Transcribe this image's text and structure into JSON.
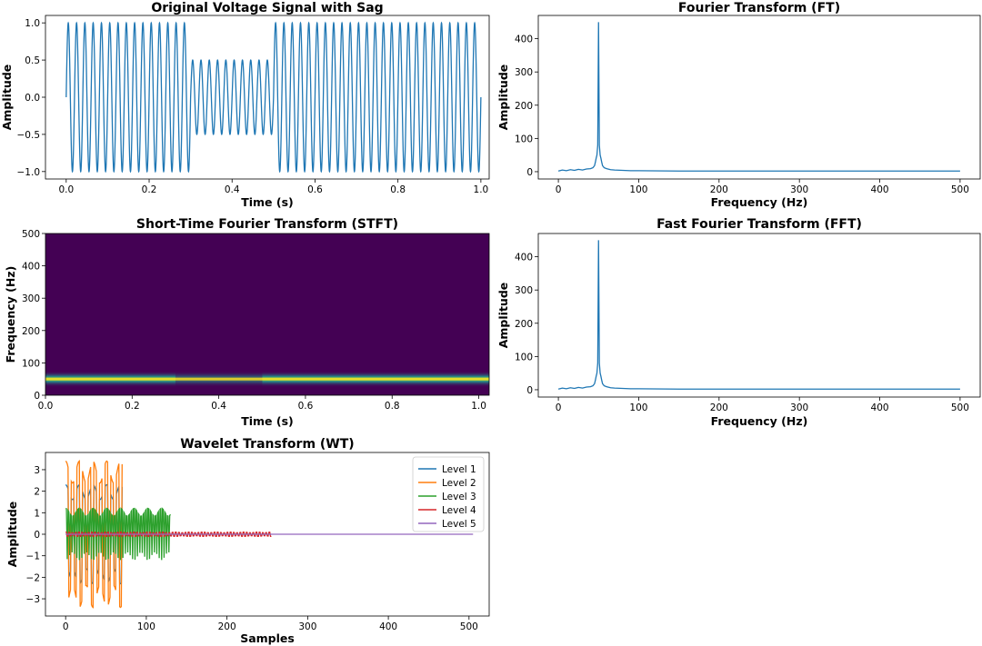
{
  "chart_data": [
    {
      "id": "voltage",
      "type": "line",
      "title": "Original Voltage Signal with Sag",
      "xlabel": "Time (s)",
      "ylabel": "Amplitude",
      "xlim": [
        -0.05,
        1.02
      ],
      "ylim": [
        -1.1,
        1.1
      ],
      "xticks": [
        0.0,
        0.2,
        0.4,
        0.6,
        0.8,
        1.0
      ],
      "xtick_labels": [
        "0.0",
        "0.2",
        "0.4",
        "0.6",
        "0.8",
        "1.0"
      ],
      "yticks": [
        -1.0,
        -0.5,
        0.0,
        0.5,
        1.0
      ],
      "ytick_labels": [
        "−1.0",
        "−0.5",
        "0.0",
        "0.5",
        "1.0"
      ],
      "signal": {
        "frequency_hz": 50,
        "duration_s": 1.0,
        "sag_start_s": 0.3,
        "sag_end_s": 0.5,
        "normal_amplitude": 1.0,
        "sag_amplitude": 0.5
      },
      "color": "#1f77b4"
    },
    {
      "id": "ft",
      "type": "line",
      "title": "Fourier Transform (FT)",
      "xlabel": "Frequency (Hz)",
      "ylabel": "Amplitude",
      "xlim": [
        -25,
        525
      ],
      "ylim": [
        -22,
        470
      ],
      "xticks": [
        0,
        100,
        200,
        300,
        400,
        500
      ],
      "xtick_labels": [
        "0",
        "100",
        "200",
        "300",
        "400",
        "500"
      ],
      "yticks": [
        0,
        100,
        200,
        300,
        400
      ],
      "ytick_labels": [
        "0",
        "100",
        "200",
        "300",
        "400"
      ],
      "x": [
        0,
        5,
        10,
        15,
        20,
        25,
        30,
        35,
        40,
        43,
        45,
        46,
        47,
        48,
        49,
        50,
        51,
        52,
        53,
        54,
        55,
        57,
        60,
        65,
        70,
        80,
        90,
        100,
        150,
        200,
        300,
        400,
        500
      ],
      "y": [
        2,
        5,
        3,
        6,
        4,
        7,
        5,
        8,
        9,
        12,
        18,
        28,
        40,
        50,
        80,
        450,
        80,
        50,
        40,
        28,
        18,
        12,
        9,
        6,
        5,
        4,
        3,
        3,
        2,
        2,
        2,
        2,
        2
      ],
      "color": "#1f77b4"
    },
    {
      "id": "stft",
      "type": "heatmap",
      "title": "Short-Time Fourier Transform (STFT)",
      "xlabel": "Time (s)",
      "ylabel": "Frequency (Hz)",
      "xlim": [
        0.0,
        1.024
      ],
      "ylim": [
        0,
        500
      ],
      "xticks": [
        0.0,
        0.2,
        0.4,
        0.6,
        0.8,
        1.0
      ],
      "xtick_labels": [
        "0.0",
        "0.2",
        "0.4",
        "0.6",
        "0.8",
        "1.0"
      ],
      "yticks": [
        0,
        100,
        200,
        300,
        400,
        500
      ],
      "ytick_labels": [
        "0",
        "100",
        "200",
        "300",
        "400",
        "500"
      ],
      "band": {
        "frequency_hz": 50,
        "segments": [
          {
            "t0": 0.0,
            "t1": 0.3,
            "intensity": 0.95
          },
          {
            "t0": 0.3,
            "t1": 0.5,
            "intensity": 0.6
          },
          {
            "t0": 0.5,
            "t1": 1.024,
            "intensity": 0.95
          }
        ]
      },
      "background_color": "#440154",
      "band_colors": [
        "#3b528b",
        "#21918c",
        "#5ec962",
        "#fde725"
      ]
    },
    {
      "id": "fft",
      "type": "line",
      "title": "Fast Fourier Transform (FFT)",
      "xlabel": "Frequency (Hz)",
      "ylabel": "Amplitude",
      "xlim": [
        -25,
        525
      ],
      "ylim": [
        -22,
        470
      ],
      "xticks": [
        0,
        100,
        200,
        300,
        400,
        500
      ],
      "xtick_labels": [
        "0",
        "100",
        "200",
        "300",
        "400",
        "500"
      ],
      "yticks": [
        0,
        100,
        200,
        300,
        400
      ],
      "ytick_labels": [
        "0",
        "100",
        "200",
        "300",
        "400"
      ],
      "x": [
        0,
        5,
        10,
        15,
        20,
        25,
        30,
        35,
        40,
        43,
        45,
        46,
        47,
        48,
        49,
        50,
        51,
        52,
        53,
        54,
        55,
        57,
        60,
        65,
        70,
        80,
        90,
        100,
        150,
        200,
        300,
        400,
        500
      ],
      "y": [
        2,
        5,
        3,
        6,
        4,
        7,
        5,
        8,
        9,
        12,
        18,
        28,
        40,
        50,
        80,
        450,
        80,
        50,
        40,
        28,
        18,
        12,
        9,
        6,
        5,
        4,
        3,
        3,
        2,
        2,
        2,
        2,
        2
      ],
      "color": "#1f77b4"
    },
    {
      "id": "wavelet",
      "type": "line",
      "title": "Wavelet Transform (WT)",
      "xlabel": "Samples",
      "ylabel": "Amplitude",
      "xlim": [
        -25,
        525
      ],
      "ylim": [
        -3.8,
        3.8
      ],
      "xticks": [
        0,
        100,
        200,
        300,
        400,
        500
      ],
      "xtick_labels": [
        "0",
        "100",
        "200",
        "300",
        "400",
        "500"
      ],
      "yticks": [
        -3,
        -2,
        -1,
        0,
        1,
        2,
        3
      ],
      "ytick_labels": [
        "−3",
        "−2",
        "−1",
        "0",
        "1",
        "2",
        "3"
      ],
      "legend_position": "top-right",
      "series": [
        {
          "name": "Level 1",
          "color": "#1f77b4",
          "length": 70,
          "amplitude": 2.3,
          "cycle": 7
        },
        {
          "name": "Level 2",
          "color": "#ff7f0e",
          "length": 70,
          "amplitude": 3.4,
          "cycle": 7
        },
        {
          "name": "Level 3",
          "color": "#2ca02c",
          "length": 130,
          "amplitude": 1.2,
          "cycle": 3
        },
        {
          "name": "Level 4",
          "color": "#d62728",
          "length": 255,
          "amplitude": 0.1,
          "cycle": 4
        },
        {
          "name": "Level 5",
          "color": "#9467bd",
          "length": 505,
          "amplitude": 0.0,
          "cycle": 4
        }
      ]
    }
  ]
}
